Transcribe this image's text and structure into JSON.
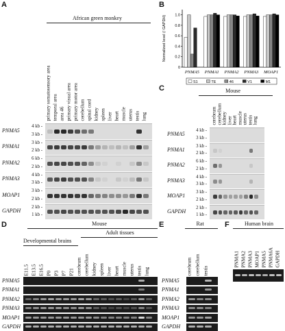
{
  "panels": {
    "A": {
      "letter": "A",
      "species": "African green monkey",
      "lanes": [
        "primary somatosensory area",
        "temporal area",
        "area 46",
        "primary visual area",
        "primary motor area",
        "cerebellum",
        "spinal cord",
        "kidney",
        "spleen",
        "liver",
        "heart",
        "muscle",
        "uterus",
        "testis",
        "lung"
      ],
      "rows": [
        {
          "gene": "PNMA5",
          "kb": [
            "4 kb -",
            "3 kb -"
          ]
        },
        {
          "gene": "PNMA1",
          "kb": [
            "3 kb -",
            "2 kb -"
          ]
        },
        {
          "gene": "PNMA2",
          "kb": [
            "6 kb -",
            "2 kb -"
          ]
        },
        {
          "gene": "PNMA3",
          "kb": [
            "4 kb -",
            "3 kb -"
          ]
        },
        {
          "gene": "MOAP1",
          "kb": [
            "3 kb -",
            "2 kb -"
          ]
        },
        {
          "gene": "GAPDH",
          "kb": [
            "2 kb -",
            "1 kb -"
          ]
        }
      ]
    },
    "B": {
      "letter": "B",
      "ylabel": "Normalized level (/ GAPDH)",
      "yticks": [
        "0",
        "0.2",
        "0.4",
        "0.6",
        "0.8",
        "1.0"
      ],
      "legend": [
        "S1",
        "TE",
        "46",
        "V1",
        "M1"
      ]
    },
    "C": {
      "letter": "C",
      "species": "Mouse",
      "lanes": [
        "cerebrum",
        "cerebellum",
        "kidney",
        "liver",
        "heart",
        "muscle",
        "uterus",
        "testis",
        "lung"
      ],
      "rows": [
        {
          "gene": "PNMA5",
          "kb": [
            "4 kb -",
            "3 kb -"
          ]
        },
        {
          "gene": "PNMA1",
          "kb": [
            "3 kb -",
            "2 kb -"
          ]
        },
        {
          "gene": "PNMA2",
          "kb": [
            "6 kb -",
            "2 kb -"
          ]
        },
        {
          "gene": "PNMA3",
          "kb": [
            "4 kb -",
            "3 kb -"
          ]
        },
        {
          "gene": "MOAP1",
          "kb": [
            "3 kb -",
            "2 kb -"
          ]
        },
        {
          "gene": "GAPDH",
          "kb": [
            "2 kb -",
            "1 kb -"
          ]
        }
      ]
    },
    "D": {
      "letter": "D",
      "species": "Mouse",
      "group1": "Developmental brains",
      "group2": "Adult tissues",
      "lanes": [
        "E11.5",
        "E13.5",
        "E16.5",
        "P0",
        "P3",
        "P7",
        "P21",
        "cerebrum",
        "cerebellum",
        "kidney",
        "spleen",
        "liver",
        "heart",
        "muscle",
        "uterus",
        "testis",
        "lung"
      ],
      "genes": [
        "PNMA5",
        "PNMA1",
        "PNMA2",
        "PNMA3",
        "MOAP1",
        "GAPDH"
      ]
    },
    "E": {
      "letter": "E",
      "species": "Rat",
      "lanes": [
        "cerebrum",
        "cerebellum",
        "testis"
      ],
      "genes": [
        "PNMA5",
        "PNMA1",
        "PNMA2",
        "PNMA3",
        "MOAP1",
        "GAPDH"
      ]
    },
    "F": {
      "letter": "F",
      "species": "Human brain",
      "lanes": [
        "PNMA1",
        "PNMA2",
        "PNMA3",
        "MOAP1",
        "PNMA5",
        "PNMA6A",
        "GAPDH"
      ]
    }
  },
  "chart_data": {
    "type": "bar",
    "title": "",
    "xlabel": "",
    "ylabel": "Normalized level (/ GAPDH)",
    "ylim": [
      0,
      1.1
    ],
    "categories": [
      "PNMA5",
      "PNMA1",
      "PNMA2",
      "PNMA3",
      "MOAP1"
    ],
    "series": [
      {
        "name": "S1",
        "color": "#ffffff",
        "values": [
          0.57,
          0.97,
          0.97,
          0.97,
          0.97
        ]
      },
      {
        "name": "TE",
        "color": "#c8c8c8",
        "values": [
          1.0,
          1.0,
          1.0,
          1.0,
          1.0
        ]
      },
      {
        "name": "46",
        "color": "#888888",
        "values": [
          0.25,
          1.0,
          1.0,
          1.0,
          1.0
        ]
      },
      {
        "name": "V1",
        "color": "#2a2a2a",
        "values": [
          0.75,
          1.03,
          1.0,
          1.02,
          1.02
        ]
      },
      {
        "name": "M1",
        "color": "#000000",
        "values": [
          0.0,
          1.0,
          0.98,
          0.98,
          1.0
        ]
      }
    ],
    "legend_position": "bottom",
    "grid": false
  }
}
